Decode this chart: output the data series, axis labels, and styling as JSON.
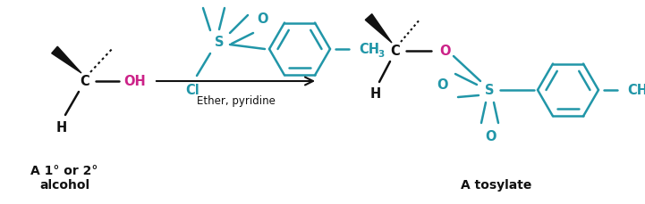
{
  "bg_color": "#ffffff",
  "teal": "#2196a8",
  "magenta": "#cc2288",
  "black": "#111111",
  "label1": "A 1° or 2°\nalcohol",
  "label2": "A tosylate",
  "arrow_label": "Ether, pyridine",
  "figsize": [
    7.21,
    2.29
  ],
  "dpi": 100
}
